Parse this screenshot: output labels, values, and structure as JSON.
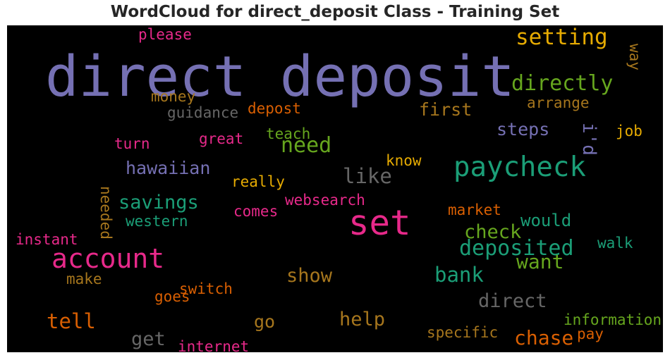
{
  "title": "WordCloud for direct_deposit Class - Training Set",
  "chart_data": {
    "type": "wordcloud",
    "title": "WordCloud for direct_deposit Class - Training Set",
    "background": "#000000",
    "colors": {
      "purple": "#7570b3",
      "green": "#1b9e77",
      "magenta": "#e7298a",
      "olive": "#66a61e",
      "orange": "#d95f02",
      "gold": "#e6ab02",
      "brown": "#a6761d",
      "gray": "#666666"
    },
    "words": [
      {
        "text": "direct deposit",
        "weight": 1.0,
        "color": "#7570b3"
      },
      {
        "text": "set",
        "weight": 0.62,
        "color": "#e7298a"
      },
      {
        "text": "paycheck",
        "weight": 0.47,
        "color": "#1b9e77"
      },
      {
        "text": "account",
        "weight": 0.45,
        "color": "#e7298a"
      },
      {
        "text": "setting",
        "weight": 0.33,
        "color": "#e6ab02"
      },
      {
        "text": "directly",
        "weight": 0.32,
        "color": "#66a61e"
      },
      {
        "text": "need",
        "weight": 0.31,
        "color": "#66a61e"
      },
      {
        "text": "deposited",
        "weight": 0.31,
        "color": "#1b9e77"
      },
      {
        "text": "bank",
        "weight": 0.3,
        "color": "#1b9e77"
      },
      {
        "text": "like",
        "weight": 0.29,
        "color": "#666666"
      },
      {
        "text": "tell",
        "weight": 0.29,
        "color": "#d95f02"
      },
      {
        "text": "want",
        "weight": 0.28,
        "color": "#66a61e"
      },
      {
        "text": "chase",
        "weight": 0.28,
        "color": "#d95f02"
      },
      {
        "text": "savings",
        "weight": 0.27,
        "color": "#1b9e77"
      },
      {
        "text": "check",
        "weight": 0.27,
        "color": "#66a61e"
      },
      {
        "text": "direct",
        "weight": 0.27,
        "color": "#666666"
      },
      {
        "text": "help",
        "weight": 0.26,
        "color": "#a6761d"
      },
      {
        "text": "show",
        "weight": 0.26,
        "color": "#a6761d"
      },
      {
        "text": "get",
        "weight": 0.26,
        "color": "#666666"
      },
      {
        "text": "i'd",
        "weight": 0.24,
        "color": "#7570b3"
      },
      {
        "text": "first",
        "weight": 0.22,
        "color": "#a6761d"
      },
      {
        "text": "hawaiian",
        "weight": 0.22,
        "color": "#7570b3"
      },
      {
        "text": "steps",
        "weight": 0.22,
        "color": "#7570b3"
      },
      {
        "text": "go",
        "weight": 0.22,
        "color": "#a6761d"
      },
      {
        "text": "would",
        "weight": 0.21,
        "color": "#1b9e77"
      },
      {
        "text": "please",
        "weight": 0.16,
        "color": "#e7298a"
      },
      {
        "text": "money",
        "weight": 0.16,
        "color": "#a6761d"
      },
      {
        "text": "guidance",
        "weight": 0.16,
        "color": "#666666"
      },
      {
        "text": "depost",
        "weight": 0.16,
        "color": "#d95f02"
      },
      {
        "text": "arrange",
        "weight": 0.15,
        "color": "#a6761d"
      },
      {
        "text": "way",
        "weight": 0.15,
        "color": "#a6761d"
      },
      {
        "text": "job",
        "weight": 0.15,
        "color": "#e6ab02"
      },
      {
        "text": "teach",
        "weight": 0.15,
        "color": "#66a61e"
      },
      {
        "text": "turn",
        "weight": 0.15,
        "color": "#e7298a"
      },
      {
        "text": "great",
        "weight": 0.15,
        "color": "#e7298a"
      },
      {
        "text": "know",
        "weight": 0.15,
        "color": "#e6ab02"
      },
      {
        "text": "really",
        "weight": 0.15,
        "color": "#e6ab02"
      },
      {
        "text": "needed",
        "weight": 0.15,
        "color": "#a6761d"
      },
      {
        "text": "websearch",
        "weight": 0.15,
        "color": "#e7298a"
      },
      {
        "text": "comes",
        "weight": 0.15,
        "color": "#e7298a"
      },
      {
        "text": "western",
        "weight": 0.15,
        "color": "#1b9e77"
      },
      {
        "text": "market",
        "weight": 0.15,
        "color": "#d95f02"
      },
      {
        "text": "instant",
        "weight": 0.15,
        "color": "#e7298a"
      },
      {
        "text": "walk",
        "weight": 0.15,
        "color": "#1b9e77"
      },
      {
        "text": "make",
        "weight": 0.15,
        "color": "#a6761d"
      },
      {
        "text": "switch",
        "weight": 0.15,
        "color": "#d95f02"
      },
      {
        "text": "goes",
        "weight": 0.15,
        "color": "#d95f02"
      },
      {
        "text": "information",
        "weight": 0.15,
        "color": "#66a61e"
      },
      {
        "text": "pay",
        "weight": 0.15,
        "color": "#d95f02"
      },
      {
        "text": "specific",
        "weight": 0.15,
        "color": "#a6761d"
      },
      {
        "text": "internet",
        "weight": 0.15,
        "color": "#e7298a"
      }
    ]
  }
}
